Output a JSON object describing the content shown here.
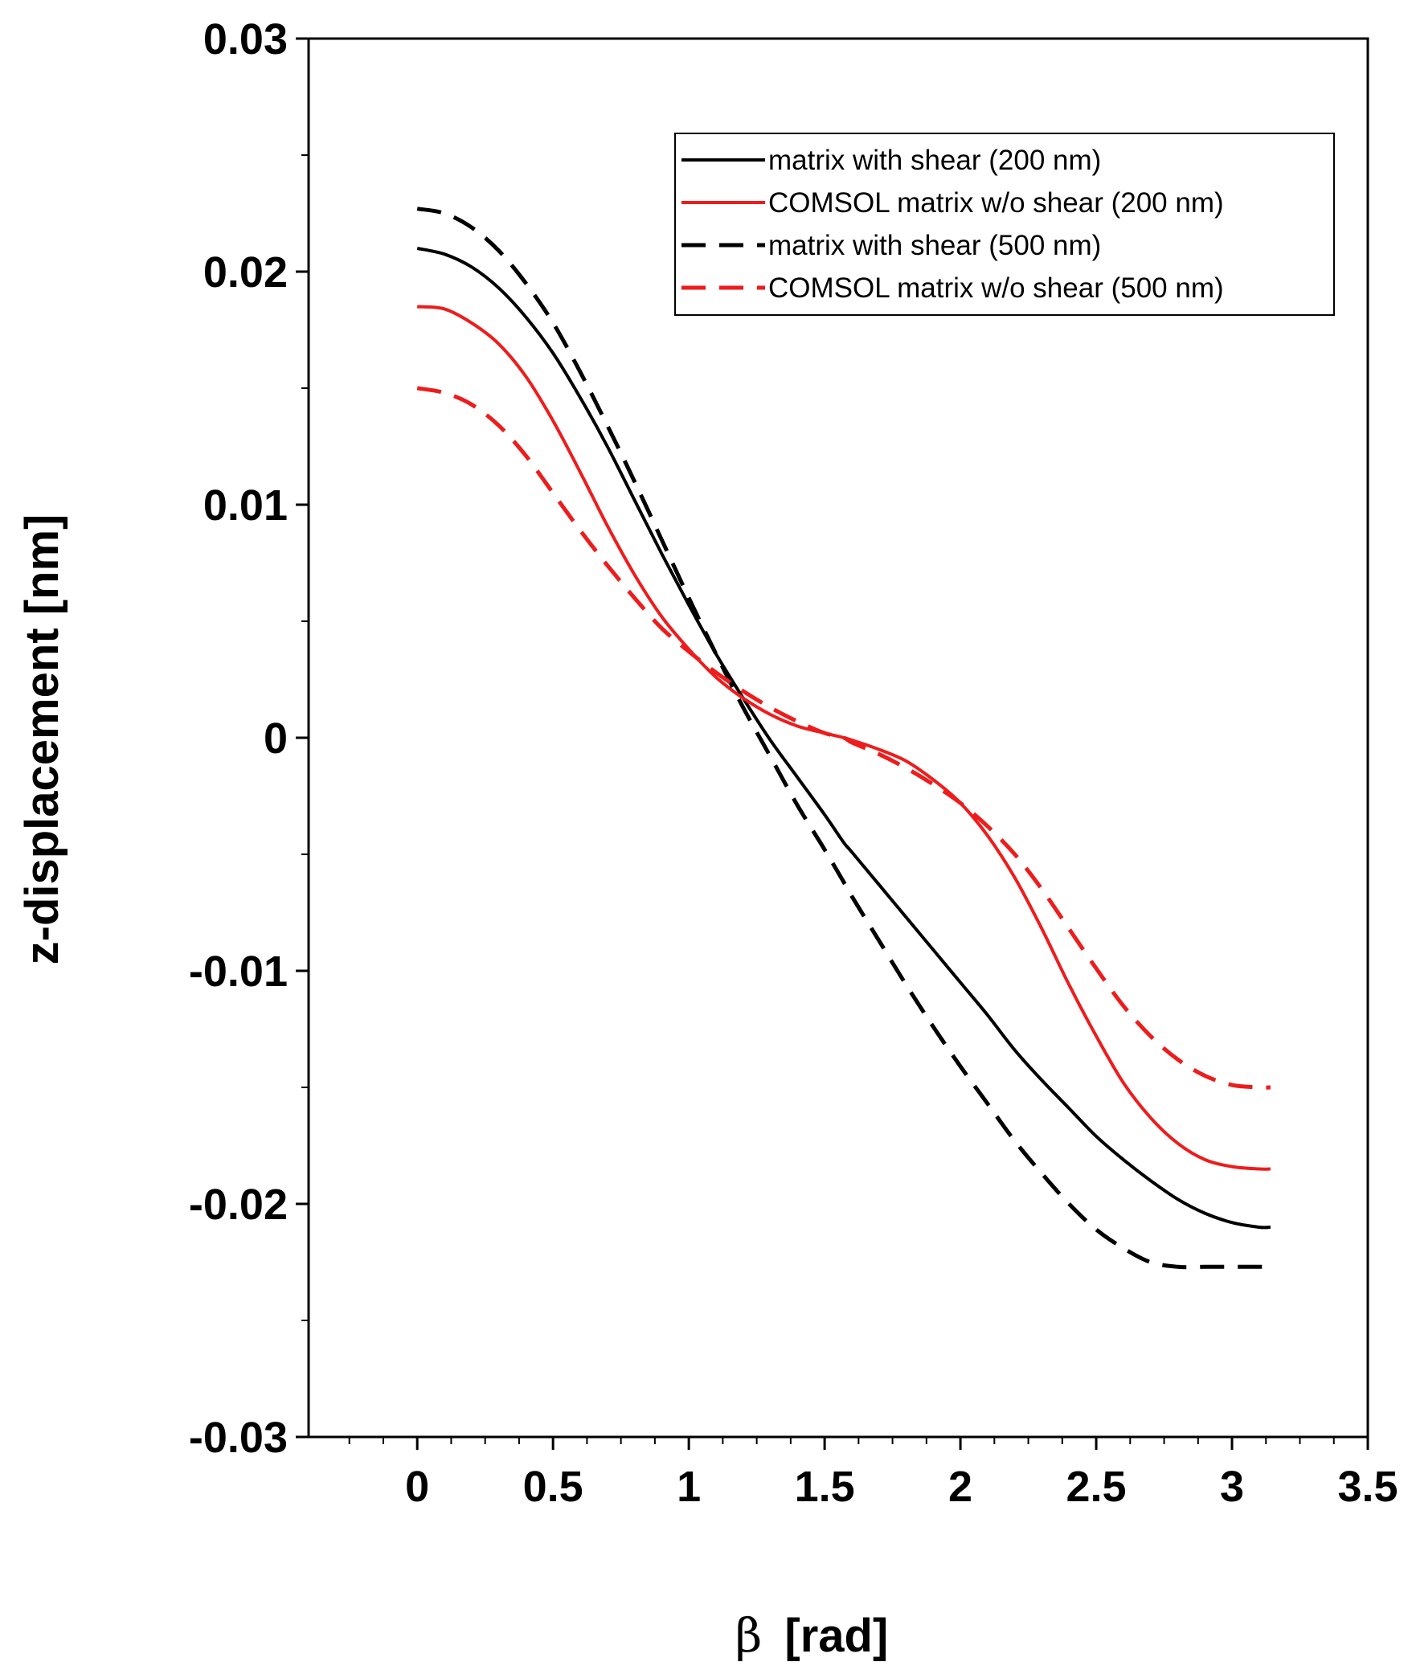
{
  "chart_data": {
    "type": "line",
    "title": "",
    "xlabel": {
      "symbol": "β",
      "text": "[rad]"
    },
    "ylabel": "z-displacement [nm]",
    "xlim": [
      -0.4,
      3.5
    ],
    "ylim": [
      -0.03,
      0.03
    ],
    "x_ticks": [
      0,
      0.5,
      1,
      1.5,
      2,
      2.5,
      3,
      3.5
    ],
    "x_tick_labels": [
      "0",
      "0.5",
      "1",
      "1.5",
      "2",
      "2.5",
      "3",
      "3.5"
    ],
    "y_ticks": [
      0.03,
      0.02,
      0.01,
      0,
      -0.01,
      -0.02,
      -0.03
    ],
    "y_tick_labels": [
      "0.03",
      "0.02",
      "0.01",
      "0",
      "-0.01",
      "-0.02",
      "-0.03"
    ],
    "legend_position": "top-right",
    "x": [
      0,
      0.1,
      0.2,
      0.3,
      0.4,
      0.5,
      0.6,
      0.7,
      0.8,
      0.9,
      1.0,
      1.1,
      1.2,
      1.3,
      1.4,
      1.5,
      1.5708,
      1.6,
      1.7,
      1.8,
      1.9,
      2.0,
      2.1,
      2.2,
      2.3,
      2.4,
      2.5,
      2.6,
      2.7,
      2.8,
      2.9,
      3.0,
      3.1,
      3.1416
    ],
    "series": [
      {
        "name": "matrix with shear (200 nm)",
        "color": "#000000",
        "dash": "solid",
        "values": [
          0.021,
          0.02075,
          0.0202,
          0.0193,
          0.01805,
          0.0165,
          0.0146,
          0.0125,
          0.0102,
          0.0079,
          0.0057,
          0.0036,
          0.0017,
          -0.0001,
          -0.0017,
          -0.0033,
          -0.0045,
          -0.0049,
          -0.0063,
          -0.0077,
          -0.0091,
          -0.0105,
          -0.0119,
          -0.0134,
          -0.0147,
          -0.0159,
          -0.0171,
          -0.0181,
          -0.019,
          -0.0198,
          -0.0204,
          -0.0208,
          -0.021,
          -0.021
        ]
      },
      {
        "name": "COMSOL matrix w/o shear (200 nm)",
        "color": "#ee1c1c",
        "dash": "solid",
        "values": [
          0.0185,
          0.0184,
          0.0178,
          0.0169,
          0.0155,
          0.0136,
          0.0114,
          0.0091,
          0.007,
          0.0052,
          0.0038,
          0.0026,
          0.0017,
          0.001,
          0.0005,
          0.0002,
          0.0,
          -0.0001,
          -0.0005,
          -0.001,
          -0.0018,
          -0.0028,
          -0.0042,
          -0.006,
          -0.0082,
          -0.0106,
          -0.0128,
          -0.0148,
          -0.0163,
          -0.0174,
          -0.0181,
          -0.0184,
          -0.0185,
          -0.0185
        ]
      },
      {
        "name": "matrix with shear (500 nm)",
        "color": "#000000",
        "dash": "dashed",
        "values": [
          0.0227,
          0.0225,
          0.0219,
          0.0209,
          0.0195,
          0.0178,
          0.0157,
          0.0134,
          0.011,
          0.0085,
          0.006,
          0.0036,
          0.0013,
          -0.0008,
          -0.0029,
          -0.0048,
          -0.0062,
          -0.0068,
          -0.0087,
          -0.0106,
          -0.0124,
          -0.0141,
          -0.0157,
          -0.0173,
          -0.0187,
          -0.02,
          -0.0211,
          -0.0219,
          -0.0225,
          -0.0227,
          -0.0227,
          -0.0227,
          -0.0227,
          -0.0227
        ]
      },
      {
        "name": "COMSOL matrix w/o shear (500 nm)",
        "color": "#ee1c1c",
        "dash": "dashed",
        "values": [
          0.015,
          0.0148,
          0.0143,
          0.0134,
          0.0121,
          0.0105,
          0.0089,
          0.0074,
          0.006,
          0.0047,
          0.0037,
          0.0028,
          0.002,
          0.0013,
          0.0007,
          0.0002,
          0.0,
          -0.0002,
          -0.0007,
          -0.0013,
          -0.002,
          -0.0028,
          -0.0038,
          -0.005,
          -0.0065,
          -0.0082,
          -0.0099,
          -0.0115,
          -0.0128,
          -0.0138,
          -0.0145,
          -0.0149,
          -0.015,
          -0.015
        ]
      }
    ]
  }
}
